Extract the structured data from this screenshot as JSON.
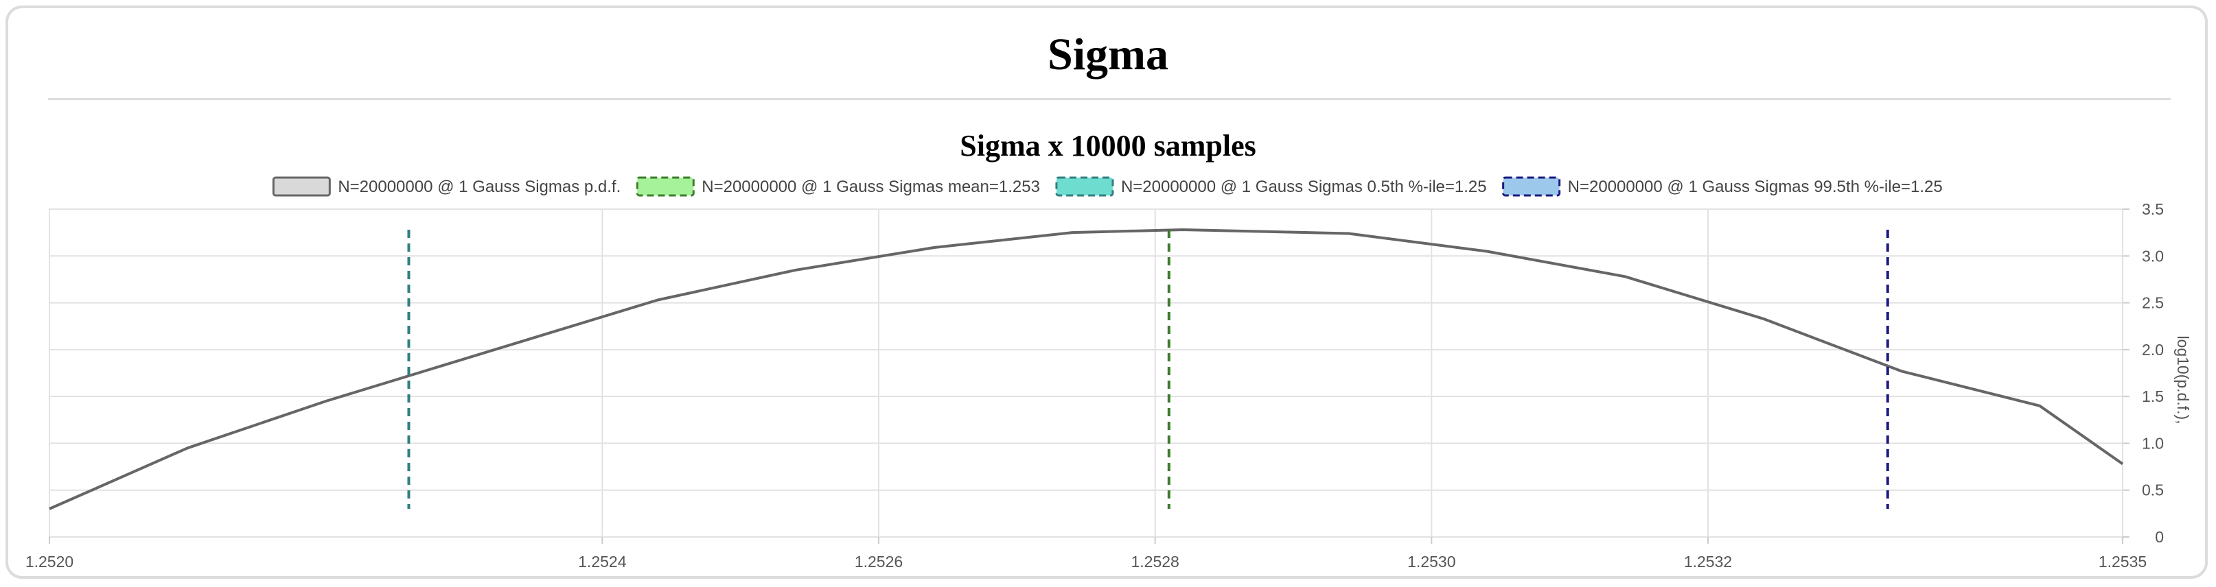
{
  "page": {
    "title": "Sigma"
  },
  "chart_data": {
    "type": "line",
    "title": "Sigma x 10000 samples",
    "xlabel": "",
    "ylabel": "log10(p.d.f.),",
    "xlim": [
      1.252,
      1.2535
    ],
    "ylim": [
      0,
      3.5
    ],
    "x_ticks": [
      "1.2520",
      "1.2524",
      "1.2526",
      "1.2528",
      "1.2530",
      "1.2532",
      "1.2535"
    ],
    "y_ticks": [
      "0",
      "0.5",
      "1.0",
      "1.5",
      "2.0",
      "2.5",
      "3.0",
      "3.5"
    ],
    "grid": true,
    "legend_position": "top",
    "series": [
      {
        "name": "N=20000000 @ 1 Gauss Sigmas p.d.f.",
        "kind": "line",
        "color": "#666666",
        "fill": "#d9d9d9",
        "dash": "solid",
        "x": [
          1.252,
          1.2521,
          1.2522,
          1.25234,
          1.25244,
          1.25254,
          1.25264,
          1.25274,
          1.25282,
          1.25294,
          1.25304,
          1.25314,
          1.25324,
          1.25334,
          1.25344,
          1.2535
        ],
        "y": [
          0.3,
          0.95,
          1.45,
          2.08,
          2.53,
          2.85,
          3.09,
          3.25,
          3.28,
          3.24,
          3.05,
          2.78,
          2.33,
          1.77,
          1.4,
          0.78
        ]
      },
      {
        "name": "N=20000000 @ 1 Gauss Sigmas mean=1.253",
        "kind": "vline",
        "color": "#3a7d2b",
        "fill": "#a6f29a",
        "dash": "dashed",
        "x": 1.25281,
        "y_range": [
          0.3,
          3.28
        ]
      },
      {
        "name": "N=20000000 @ 1 Gauss Sigmas 0.5th %-ile=1.25",
        "kind": "vline",
        "color": "#2f7f80",
        "fill": "#6fdcd0",
        "dash": "dashed",
        "x": 1.25226,
        "y_range": [
          0.3,
          3.28
        ]
      },
      {
        "name": "N=20000000 @ 1 Gauss Sigmas 99.5th %-ile=1.25",
        "kind": "vline",
        "color": "#1a1a80",
        "fill": "#9cc8ec",
        "dash": "dashed",
        "x": 1.25333,
        "y_range": [
          0.3,
          3.28
        ]
      }
    ]
  }
}
